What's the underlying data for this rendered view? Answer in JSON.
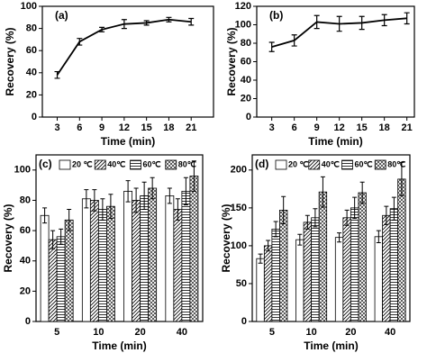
{
  "chart_data": [
    {
      "type": "line",
      "title": "(a)",
      "x_label": "Time (min)",
      "y_label": "Recovery (%)",
      "color": "#000000",
      "x": [
        3,
        6,
        9,
        12,
        15,
        18,
        21
      ],
      "values": [
        38,
        68,
        79,
        84,
        85,
        88,
        86
      ],
      "errors": [
        3,
        3,
        2,
        4,
        2,
        2,
        3
      ],
      "xlim": [
        1,
        24
      ],
      "xticks": [
        3,
        6,
        9,
        12,
        15,
        18,
        21
      ],
      "ylim": [
        0,
        100
      ],
      "yticks": [
        0,
        20,
        40,
        60,
        80,
        100
      ]
    },
    {
      "type": "line",
      "title": "(b)",
      "x_label": "Time (min)",
      "y_label": "Recovery (%)",
      "color": "#000000",
      "x": [
        3,
        6,
        9,
        12,
        15,
        18,
        21
      ],
      "values": [
        76,
        83,
        103,
        101,
        102,
        105,
        107
      ],
      "errors": [
        5,
        6,
        7,
        8,
        7,
        6,
        6
      ],
      "xlim": [
        1,
        22
      ],
      "xticks": [
        3,
        6,
        9,
        12,
        15,
        18,
        21
      ],
      "ylim": [
        0,
        120
      ],
      "yticks": [
        0,
        20,
        40,
        60,
        80,
        100,
        120
      ]
    },
    {
      "type": "bar",
      "title": "(c)",
      "x_label": "Time (min)",
      "y_label": "Recovery (%)",
      "categories": [
        "5",
        "10",
        "20",
        "40"
      ],
      "series": [
        {
          "name": "20 ℃",
          "color": "#000000",
          "hatch": "none",
          "values": [
            70,
            81,
            86,
            83
          ],
          "errors": [
            5,
            6,
            7,
            5
          ]
        },
        {
          "name": "40℃",
          "color": "#000000",
          "hatch": "diagonal",
          "values": [
            54,
            80,
            80,
            74
          ],
          "errors": [
            6,
            7,
            8,
            7
          ]
        },
        {
          "name": "60℃",
          "color": "#000000",
          "hatch": "horizontal",
          "values": [
            56,
            74,
            83,
            86
          ],
          "errors": [
            5,
            7,
            9,
            9
          ]
        },
        {
          "name": "80℃",
          "color": "#000000",
          "hatch": "crosshatch",
          "values": [
            67,
            76,
            88,
            96
          ],
          "errors": [
            7,
            8,
            7,
            10
          ]
        }
      ],
      "ylim": [
        0,
        110
      ],
      "yticks": [
        0,
        20,
        40,
        60,
        80,
        100
      ]
    },
    {
      "type": "bar",
      "title": "(d)",
      "x_label": "Time (min)",
      "y_label": "Recovery (%)",
      "categories": [
        "5",
        "10",
        "20",
        "40"
      ],
      "series": [
        {
          "name": "20 ℃",
          "color": "#000000",
          "hatch": "none",
          "values": [
            83,
            108,
            111,
            112
          ],
          "errors": [
            6,
            7,
            6,
            8
          ]
        },
        {
          "name": "40℃",
          "color": "#000000",
          "hatch": "diagonal",
          "values": [
            100,
            131,
            137,
            140
          ],
          "errors": [
            7,
            9,
            10,
            12
          ]
        },
        {
          "name": "60℃",
          "color": "#000000",
          "hatch": "horizontal",
          "values": [
            122,
            137,
            150,
            149
          ],
          "errors": [
            10,
            12,
            14,
            15
          ]
        },
        {
          "name": "80℃",
          "color": "#000000",
          "hatch": "crosshatch",
          "values": [
            147,
            171,
            170,
            188
          ],
          "errors": [
            18,
            20,
            14,
            22
          ]
        }
      ],
      "ylim": [
        0,
        220
      ],
      "yticks": [
        0,
        50,
        100,
        150,
        200
      ]
    }
  ]
}
